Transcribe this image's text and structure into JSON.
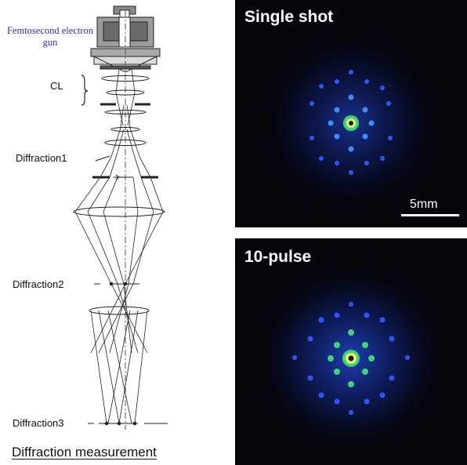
{
  "labels": {
    "gun": "Femtosecond electron gun",
    "cl": "CL",
    "diffraction1": "Diffraction1",
    "diffraction2": "Diffraction2",
    "diffraction3": "Diffraction3",
    "footer": "Diffraction measurement"
  },
  "panels": [
    {
      "title": "Single shot",
      "scale": "5mm"
    },
    {
      "title": "10-pulse"
    }
  ],
  "colors": {
    "gun_label": "#2a2ad8",
    "panel_background": "#04040a",
    "spot_core": "#f0ff60",
    "spot_inner": "#3bd47a",
    "spot_outer": "#2a56ff"
  }
}
